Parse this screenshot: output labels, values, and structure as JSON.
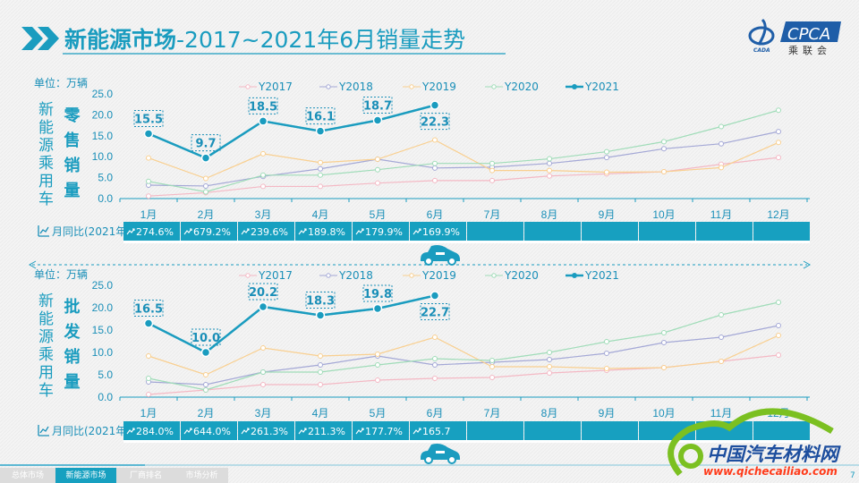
{
  "header": {
    "title_bold": "新能源市场",
    "title_rest": "-2017~2021年6月销量走势",
    "logo_text": "CPCA",
    "logo_sub": "乘联会",
    "logo_small": "CADA"
  },
  "watermark": "CPCA乘联会",
  "colors": {
    "accent": "#1a9cbf",
    "y2017": "#f4b8c4",
    "y2018": "#a4a8d6",
    "y2019": "#f9cf8f",
    "y2020": "#9fdcb8",
    "y2021": "#1a9cbf"
  },
  "unit_label": "单位：万辆",
  "side_label": [
    "新",
    "能",
    "源",
    "乘",
    "用",
    "车"
  ],
  "months": [
    "1月",
    "2月",
    "3月",
    "4月",
    "5月",
    "6月",
    "7月",
    "8月",
    "9月",
    "10月",
    "11月",
    "12月"
  ],
  "yoy_label": "月同比(2021年)",
  "chart_data": [
    {
      "type": "line",
      "title": "零售销量",
      "title_chars": [
        "零",
        "售",
        "销",
        "量"
      ],
      "ylim": [
        0,
        25
      ],
      "yticks": [
        "0.0",
        "5.0",
        "10.0",
        "15.0",
        "20.0",
        "25.0"
      ],
      "series": [
        {
          "name": "Y2017",
          "values": [
            0.6,
            1.4,
            2.9,
            2.9,
            3.7,
            4.3,
            4.3,
            5.4,
            5.9,
            6.4,
            8.2,
            9.8
          ]
        },
        {
          "name": "Y2018",
          "values": [
            3.2,
            3.0,
            5.3,
            7.1,
            9.4,
            7.3,
            7.5,
            8.4,
            9.8,
            11.9,
            13.1,
            16.0
          ]
        },
        {
          "name": "Y2019",
          "values": [
            9.7,
            4.8,
            10.7,
            8.6,
            9.4,
            14.0,
            6.7,
            6.7,
            6.3,
            6.4,
            7.4,
            13.4
          ]
        },
        {
          "name": "Y2020",
          "values": [
            4.1,
            1.6,
            5.6,
            5.6,
            6.9,
            8.4,
            8.4,
            9.5,
            11.2,
            13.6,
            17.2,
            21.1
          ]
        },
        {
          "name": "Y2021",
          "values": [
            15.5,
            9.7,
            18.5,
            16.1,
            18.7,
            22.3
          ]
        }
      ],
      "data_labels": [
        "15.5",
        "9.7",
        "18.5",
        "16.1",
        "18.7",
        "22.3"
      ],
      "yoy": [
        "274.6%",
        "679.2%",
        "239.6%",
        "189.8%",
        "179.9%",
        "169.9%",
        "",
        "",
        "",
        "",
        "",
        ""
      ]
    },
    {
      "type": "line",
      "title": "批发销量",
      "title_chars": [
        "批",
        "发",
        "销",
        "量"
      ],
      "ylim": [
        0,
        25
      ],
      "yticks": [
        "0.0",
        "5.0",
        "10.0",
        "15.0",
        "20.0",
        "25.0"
      ],
      "series": [
        {
          "name": "Y2017",
          "values": [
            0.6,
            1.6,
            2.8,
            2.8,
            3.8,
            4.2,
            4.4,
            5.4,
            6.0,
            6.6,
            8.0,
            9.4
          ]
        },
        {
          "name": "Y2018",
          "values": [
            3.4,
            2.8,
            5.6,
            7.2,
            9.2,
            7.2,
            7.8,
            8.4,
            9.8,
            12.2,
            13.4,
            16.0
          ]
        },
        {
          "name": "Y2019",
          "values": [
            9.2,
            5.0,
            11.0,
            9.2,
            9.6,
            13.4,
            6.8,
            6.8,
            6.4,
            6.6,
            8.0,
            13.8
          ]
        },
        {
          "name": "Y2020",
          "values": [
            4.2,
            1.6,
            5.6,
            5.6,
            7.2,
            8.6,
            8.2,
            10.0,
            12.4,
            14.4,
            18.4,
            21.2
          ]
        },
        {
          "name": "Y2021",
          "values": [
            16.5,
            10.0,
            20.2,
            18.3,
            19.8,
            22.7
          ]
        }
      ],
      "data_labels": [
        "16.5",
        "10.0",
        "20.2",
        "18.3",
        "19.8",
        "22.7"
      ],
      "yoy": [
        "284.0%",
        "644.0%",
        "261.3%",
        "211.3%",
        "177.7%",
        "165.7",
        "",
        "",
        "",
        "",
        "",
        ""
      ]
    }
  ],
  "tabs": [
    "总体市场",
    "新能源市场",
    "厂商排名",
    "市场分析"
  ],
  "active_tab": 1,
  "page_number": "7",
  "corner_watermark": {
    "name": "中国汽车材料网",
    "url": "www.qichecailiao.com"
  }
}
